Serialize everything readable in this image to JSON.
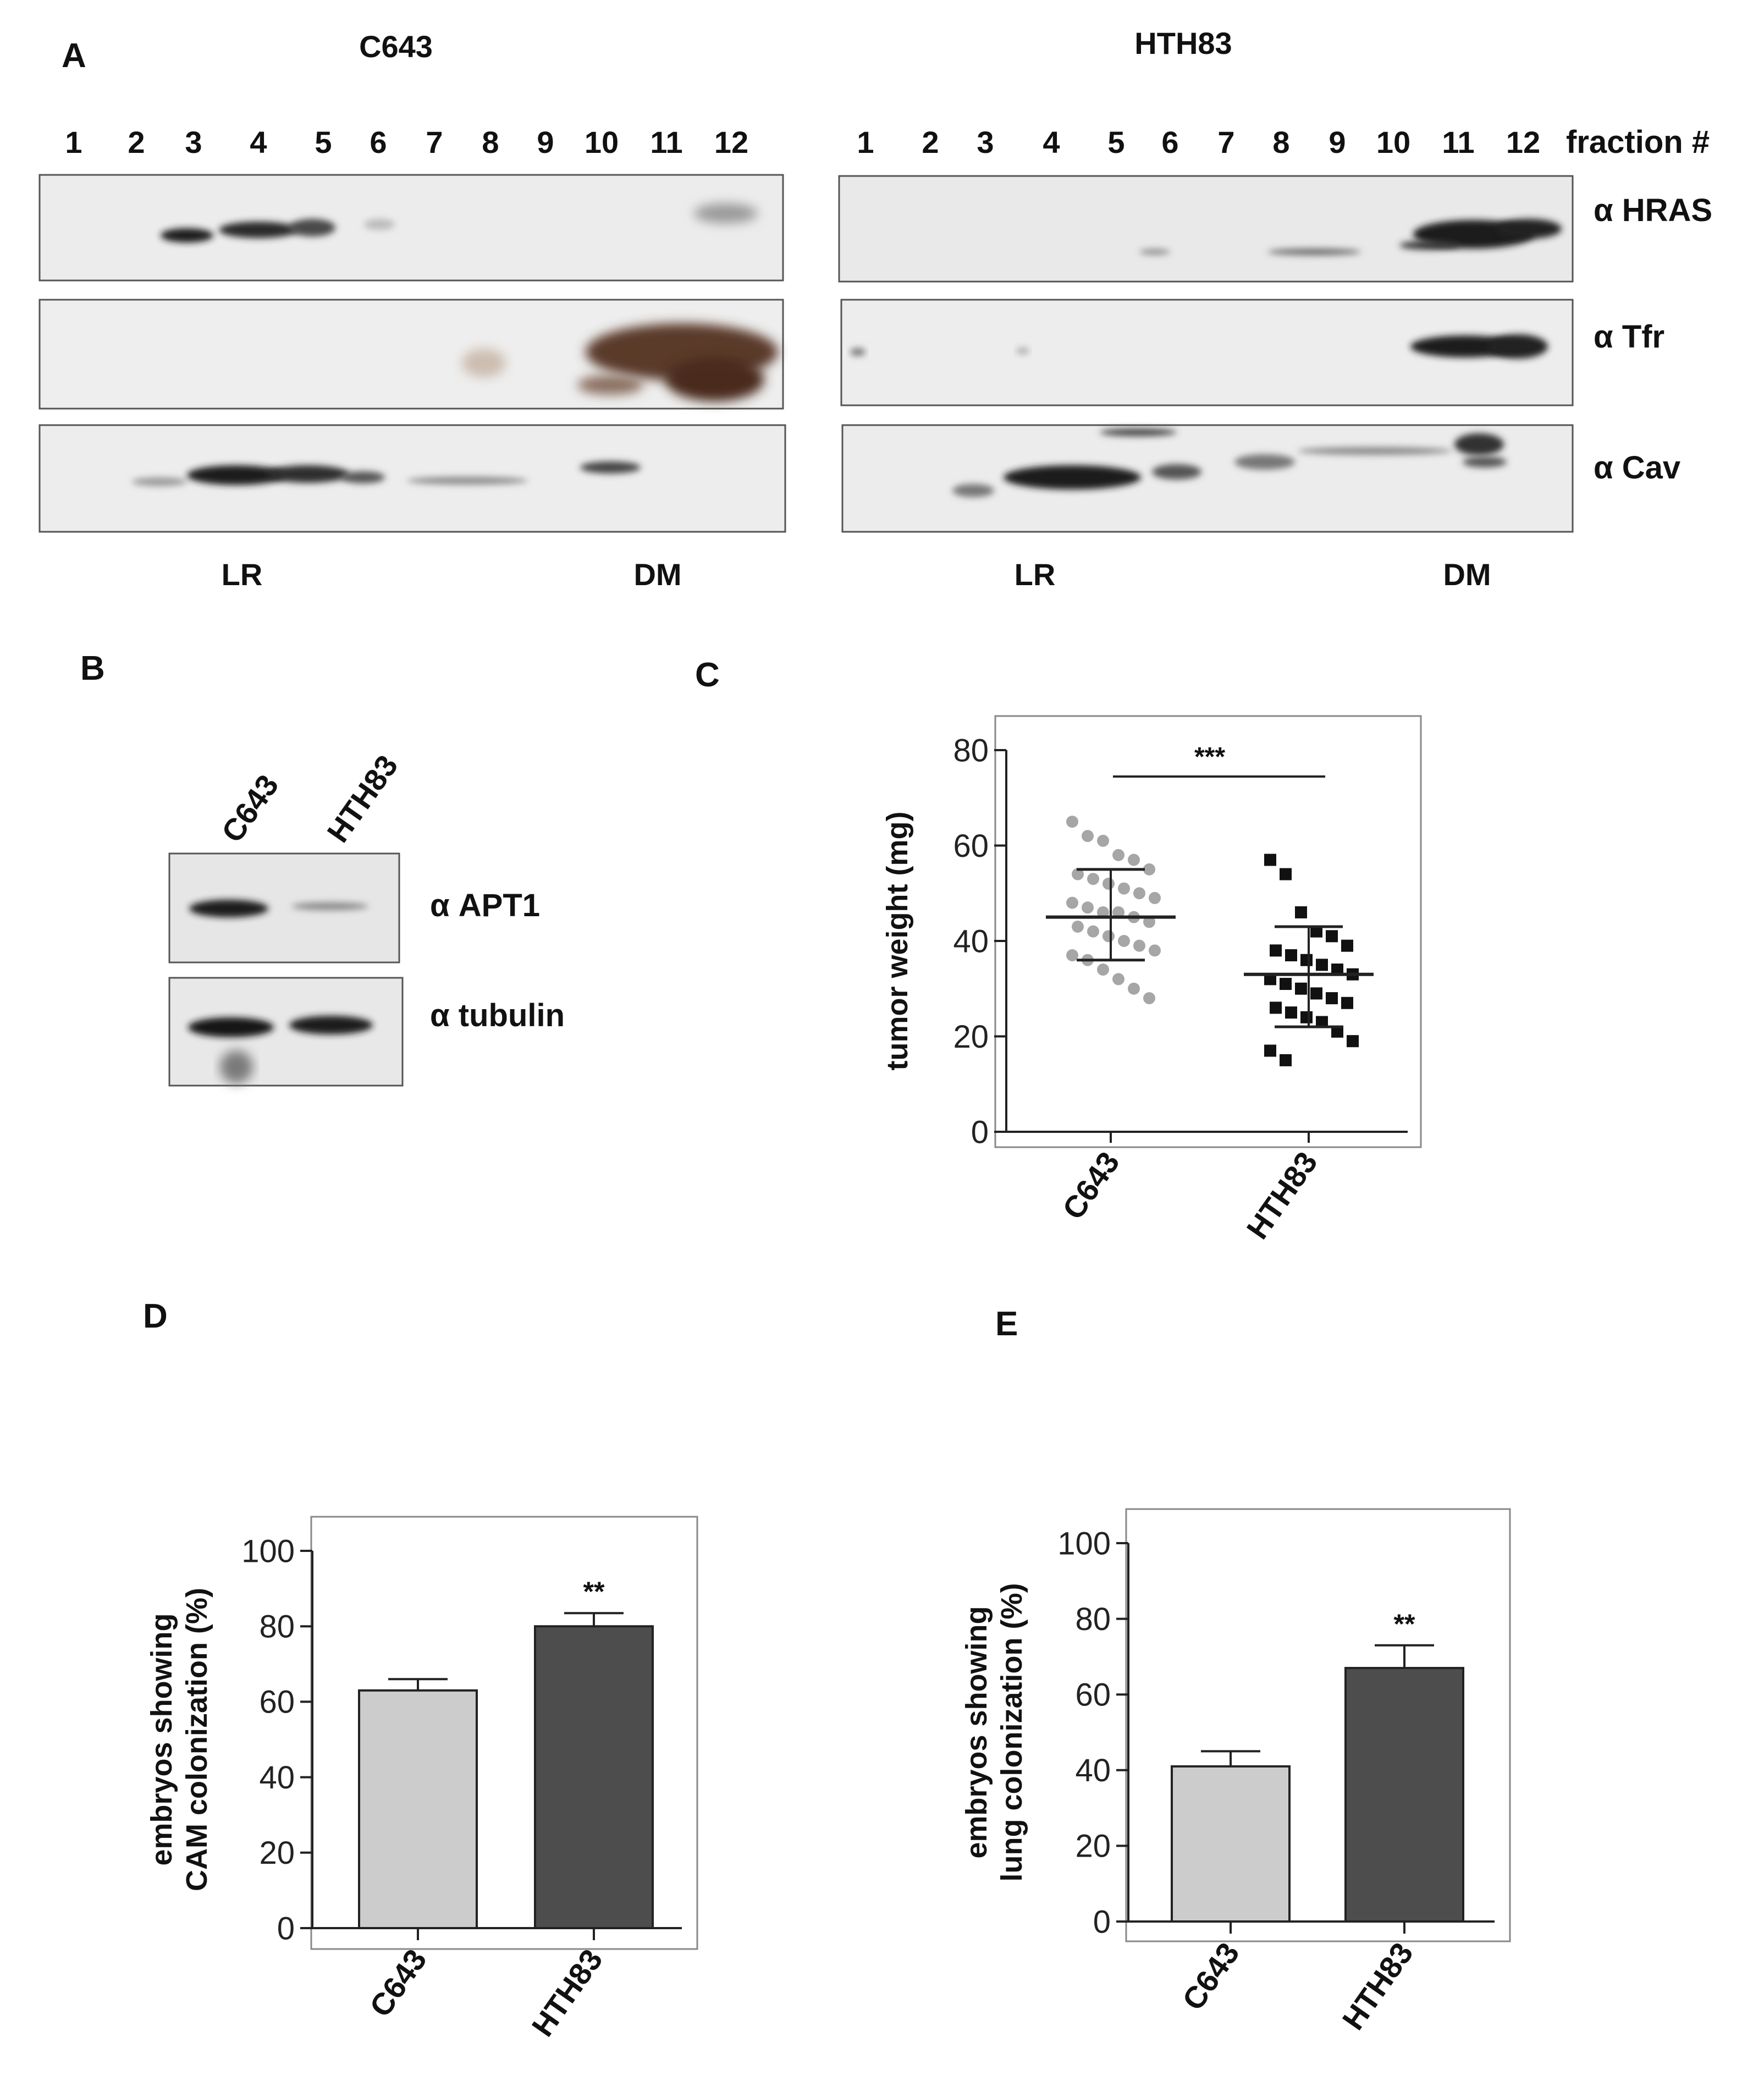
{
  "panels": {
    "A": {
      "letter": "A",
      "left_title": "C643",
      "right_title": "HTH83",
      "fractions": [
        "1",
        "2",
        "3",
        "4",
        "5",
        "6",
        "7",
        "8",
        "9",
        "10",
        "11",
        "12"
      ],
      "fraction_label": "fraction #",
      "blot_labels": [
        "α HRAS",
        "α Tfr",
        "α Cav"
      ],
      "bottom_labels": {
        "lr": "LR",
        "dm": "DM"
      }
    },
    "B": {
      "letter": "B",
      "lanes": [
        "C643",
        "HTH83"
      ],
      "blot_labels": [
        "α APT1",
        "α tubulin"
      ]
    },
    "C": {
      "letter": "C"
    },
    "D": {
      "letter": "D"
    },
    "E": {
      "letter": "E"
    }
  },
  "chart_data": [
    {
      "panel": "C",
      "type": "scatter",
      "title": "",
      "ylabel": "tumor weight (mg)",
      "xlabel": "",
      "categories": [
        "C643",
        "HTH83"
      ],
      "ylim": [
        0,
        80
      ],
      "yticks": [
        0,
        20,
        40,
        60,
        80
      ],
      "significance": "***",
      "colors": {
        "C643": "#a6a6a6",
        "HTH83": "#111111"
      },
      "series": [
        {
          "category": "C643",
          "mean": 45,
          "sd_low": 36,
          "sd_high": 55,
          "values": [
            65,
            62,
            61,
            58,
            57,
            55,
            54,
            53,
            52,
            51,
            50,
            49,
            48,
            47,
            46,
            46,
            45,
            44,
            43,
            42,
            41,
            40,
            39,
            38,
            37,
            36,
            34,
            32,
            30,
            28
          ]
        },
        {
          "category": "HTH83",
          "mean": 33,
          "sd_low": 22,
          "sd_high": 43,
          "values": [
            57,
            54,
            46,
            42,
            41,
            39,
            38,
            37,
            36,
            35,
            34,
            33,
            32,
            31,
            30,
            29,
            28,
            27,
            26,
            25,
            24,
            23,
            21,
            19,
            17,
            15
          ]
        }
      ]
    },
    {
      "panel": "D",
      "type": "bar",
      "title": "",
      "ylabel_lines": [
        "embryos showing",
        "CAM colonization (%)"
      ],
      "categories": [
        "C643",
        "HTH83"
      ],
      "values": [
        63,
        80
      ],
      "errors": [
        3,
        3.5
      ],
      "ylim": [
        0,
        100
      ],
      "yticks": [
        0,
        20,
        40,
        60,
        80,
        100
      ],
      "significance": "**",
      "colors": [
        "#cccccc",
        "#4d4d4d"
      ]
    },
    {
      "panel": "E",
      "type": "bar",
      "title": "",
      "ylabel_lines": [
        "embryos showing",
        "lung  colonization (%)"
      ],
      "categories": [
        "C643",
        "HTH83"
      ],
      "values": [
        41,
        67
      ],
      "errors": [
        4,
        6
      ],
      "ylim": [
        0,
        100
      ],
      "yticks": [
        0,
        20,
        40,
        60,
        80,
        100
      ],
      "significance": "**",
      "colors": [
        "#cccccc",
        "#4d4d4d"
      ]
    }
  ]
}
